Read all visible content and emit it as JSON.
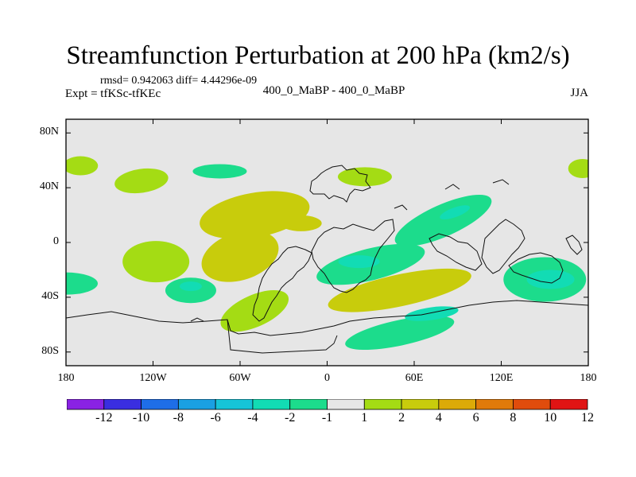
{
  "chart_data": {
    "type": "heatmap",
    "title": "Streamfunction Perturbation at 200 hPa (km2/s)",
    "stats_line": "rmsd= 0.942063 diff= 4.44296e-09",
    "experiment_label": "Expt = tfKSc-tfKEc",
    "center_label": "400_0_MaBP - 400_0_MaBP",
    "season": "JJA",
    "x_ticks": [
      {
        "lon": -180,
        "label": "180"
      },
      {
        "lon": -120,
        "label": "120W"
      },
      {
        "lon": -60,
        "label": "60W"
      },
      {
        "lon": 0,
        "label": "0"
      },
      {
        "lon": 60,
        "label": "60E"
      },
      {
        "lon": 120,
        "label": "120E"
      },
      {
        "lon": 180,
        "label": "180"
      }
    ],
    "y_ticks": [
      {
        "lat": 80,
        "label": "80N"
      },
      {
        "lat": 40,
        "label": "40N"
      },
      {
        "lat": 0,
        "label": "0"
      },
      {
        "lat": -40,
        "label": "40S"
      },
      {
        "lat": -80,
        "label": "80S"
      }
    ],
    "xlim": [
      -180,
      180
    ],
    "ylim": [
      -90,
      90
    ],
    "colorbar": {
      "boundaries": [
        "-12",
        "-10",
        "-8",
        "-6",
        "-4",
        "-2",
        "-1",
        "1",
        "2",
        "4",
        "6",
        "8",
        "10",
        "12"
      ],
      "colors": [
        "#8a22e4",
        "#3a2ee0",
        "#1e6ee8",
        "#1aa0e2",
        "#16c4d8",
        "#12dcb4",
        "#1cdc8c",
        "#e6e6e6",
        "#a4dc14",
        "#c8cc0c",
        "#dcaa08",
        "#e07a0a",
        "#e04c0c",
        "#e01414"
      ]
    },
    "fields": [
      {
        "lon": -170,
        "lat": 56,
        "value": 1.5
      },
      {
        "lon": 176,
        "lat": 54,
        "value": 1.5
      },
      {
        "lon": -128,
        "lat": 45,
        "value": 1.5
      },
      {
        "lon": -74,
        "lat": 52,
        "value": -1.5
      },
      {
        "lon": 26,
        "lat": 48,
        "value": 1.5
      },
      {
        "lon": -50,
        "lat": 20,
        "value": 2
      },
      {
        "lon": -18,
        "lat": 14,
        "value": 3
      },
      {
        "lon": -60,
        "lat": -10,
        "value": 2.5
      },
      {
        "lon": -118,
        "lat": -14,
        "value": 1.5
      },
      {
        "lon": 80,
        "lat": 16,
        "value": -1.5
      },
      {
        "lon": 88,
        "lat": 22,
        "value": -2.5
      },
      {
        "lon": 30,
        "lat": -16,
        "value": -1.5
      },
      {
        "lon": 22,
        "lat": -14,
        "value": -2.5
      },
      {
        "lon": 50,
        "lat": -35,
        "value": 2.5
      },
      {
        "lon": 50,
        "lat": -66,
        "value": -1.5
      },
      {
        "lon": 72,
        "lat": -52,
        "value": -2.5
      },
      {
        "lon": 150,
        "lat": -27,
        "value": -1.5
      },
      {
        "lon": 154,
        "lat": -27,
        "value": -2.5
      },
      {
        "lon": -180,
        "lat": -30,
        "value": -1.5
      },
      {
        "lon": -94,
        "lat": -35,
        "value": -1.5
      },
      {
        "lon": -94,
        "lat": -32,
        "value": -2.5
      },
      {
        "lon": -50,
        "lat": -50,
        "value": 1.5
      }
    ]
  }
}
